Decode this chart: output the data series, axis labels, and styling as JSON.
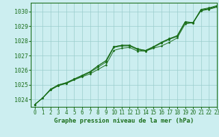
{
  "bg_color": "#cceef0",
  "grid_color": "#99cccc",
  "line_color": "#1a6e1a",
  "marker_color": "#1a6e1a",
  "title": "Graphe pression niveau de la mer (hPa)",
  "xlim": [
    -0.5,
    23
  ],
  "ylim": [
    1023.5,
    1030.6
  ],
  "yticks": [
    1024,
    1025,
    1026,
    1027,
    1028,
    1029,
    1030
  ],
  "xticks": [
    0,
    1,
    2,
    3,
    4,
    5,
    6,
    7,
    8,
    9,
    10,
    11,
    12,
    13,
    14,
    15,
    16,
    17,
    18,
    19,
    20,
    21,
    22,
    23
  ],
  "series": [
    [
      1023.65,
      1024.1,
      1024.65,
      1024.95,
      1025.1,
      1025.35,
      1025.55,
      1025.75,
      1026.05,
      1026.35,
      1027.35,
      1027.5,
      1027.55,
      1027.3,
      1027.3,
      1027.5,
      1027.65,
      1027.9,
      1028.2,
      1029.15,
      1029.25,
      1030.05,
      1030.15,
      1030.3
    ],
    [
      1023.65,
      1024.1,
      1024.65,
      1024.95,
      1025.1,
      1025.35,
      1025.6,
      1025.85,
      1026.2,
      1026.55,
      1027.55,
      1027.65,
      1027.65,
      1027.4,
      1027.3,
      1027.55,
      1027.85,
      1028.1,
      1028.3,
      1029.25,
      1029.2,
      1030.1,
      1030.2,
      1030.35
    ],
    [
      1023.65,
      1024.1,
      1024.7,
      1025.0,
      1025.15,
      1025.4,
      1025.65,
      1025.9,
      1026.3,
      1026.65,
      1027.6,
      1027.7,
      1027.7,
      1027.45,
      1027.35,
      1027.6,
      1027.9,
      1028.15,
      1028.35,
      1029.3,
      1029.25,
      1030.1,
      1030.2,
      1030.35
    ],
    [
      1023.65,
      1024.1,
      1024.7,
      1025.0,
      1025.15,
      1025.4,
      1025.65,
      1025.9,
      1026.3,
      1026.65,
      1027.6,
      1027.7,
      1027.7,
      1027.45,
      1027.35,
      1027.6,
      1027.9,
      1028.15,
      1028.35,
      1029.3,
      1029.25,
      1030.15,
      1030.25,
      1030.4
    ]
  ]
}
